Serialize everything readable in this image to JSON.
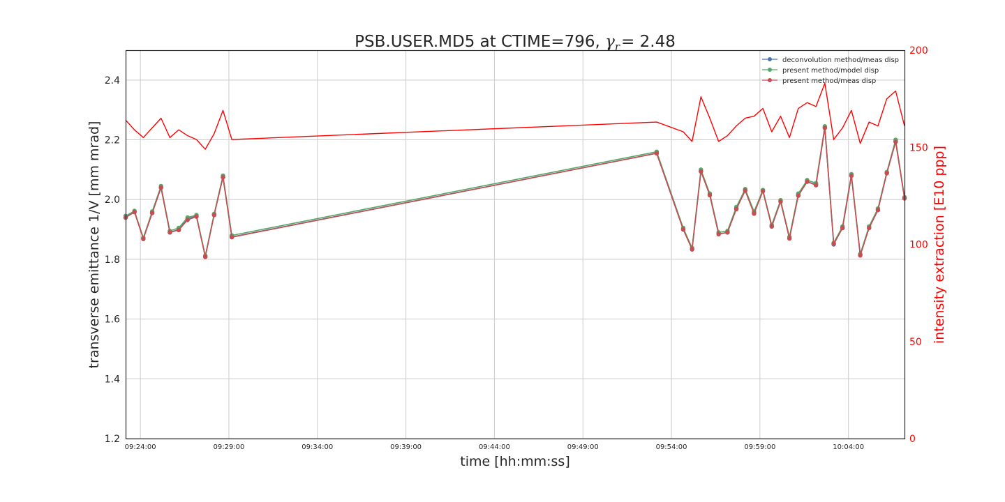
{
  "chart_data": {
    "type": "line",
    "title_text": "PSB.USER.MD5 at CTIME=796, ",
    "title_symbol": "γ",
    "title_symbol_sub": "r",
    "title_value": "=  2.48",
    "xlabel": "time [hh:mm:ss]",
    "ylabel": "transverse emittance 1/V [mm mrad]",
    "y2label": "intensity extraction [E10 ppp]",
    "xlim": [
      "09:23:10",
      "10:07:10"
    ],
    "xticks": [
      "09:24:00",
      "09:29:00",
      "09:34:00",
      "09:39:00",
      "09:44:00",
      "09:49:00",
      "09:54:00",
      "09:59:00",
      "10:04:00"
    ],
    "ylim": [
      1.2,
      2.5
    ],
    "yticks": [
      "1.2",
      "1.4",
      "1.6",
      "1.8",
      "2.0",
      "2.2",
      "2.4"
    ],
    "y2lim": [
      0,
      200
    ],
    "y2ticks": [
      "0",
      "50",
      "100",
      "150",
      "200"
    ],
    "grid": true,
    "legend_position": "top-right",
    "colors": {
      "deconvolution": "#4c72b0",
      "present_model": "#55a868",
      "present_meas": "#c44e52",
      "intensity": "#ff0000"
    },
    "x": [
      "09:23:10",
      "09:23:40",
      "09:24:10",
      "09:24:40",
      "09:25:10",
      "09:25:40",
      "09:26:10",
      "09:26:40",
      "09:27:10",
      "09:27:40",
      "09:28:10",
      "09:28:40",
      "09:29:10",
      "09:53:10",
      "09:54:40",
      "09:55:10",
      "09:55:40",
      "09:56:10",
      "09:56:40",
      "09:57:10",
      "09:57:40",
      "09:58:10",
      "09:58:40",
      "09:59:10",
      "09:59:40",
      "10:00:10",
      "10:00:40",
      "10:01:10",
      "10:01:40",
      "10:02:10",
      "10:02:40",
      "10:03:10",
      "10:03:40",
      "10:04:10",
      "10:04:40",
      "10:05:10",
      "10:05:40",
      "10:06:10",
      "10:06:40",
      "10:07:10"
    ],
    "series": [
      {
        "name": "deconvolution method/meas disp",
        "axis": "left",
        "values": [
          1.94,
          1.96,
          1.87,
          1.955,
          2.04,
          1.89,
          1.9,
          1.935,
          1.945,
          1.81,
          1.95,
          2.075,
          1.875,
          2.155,
          1.9,
          1.835,
          2.095,
          2.015,
          1.885,
          1.89,
          1.97,
          2.03,
          1.955,
          2.03,
          1.91,
          1.995,
          1.87,
          2.015,
          2.06,
          2.05,
          2.24,
          1.85,
          1.905,
          2.08,
          1.815,
          1.905,
          1.965,
          2.09,
          2.195,
          2.005
        ]
      },
      {
        "name": "present method/model disp",
        "axis": "left",
        "values": [
          1.945,
          1.962,
          1.872,
          1.96,
          2.045,
          1.895,
          1.905,
          1.94,
          1.948,
          1.812,
          1.952,
          2.08,
          1.88,
          2.16,
          1.905,
          1.838,
          2.1,
          2.02,
          1.89,
          1.895,
          1.975,
          2.035,
          1.96,
          2.032,
          1.915,
          1.998,
          1.875,
          2.02,
          2.065,
          2.055,
          2.245,
          1.855,
          1.91,
          2.085,
          1.818,
          1.91,
          1.97,
          2.092,
          2.2,
          2.008
        ]
      },
      {
        "name": "present method/meas disp",
        "axis": "left",
        "values": [
          1.94,
          1.958,
          1.868,
          1.955,
          2.04,
          1.89,
          1.898,
          1.932,
          1.943,
          1.808,
          1.948,
          2.075,
          1.874,
          2.155,
          1.9,
          1.833,
          2.094,
          2.015,
          1.884,
          1.89,
          1.968,
          2.03,
          1.953,
          2.028,
          1.91,
          1.993,
          1.87,
          2.013,
          2.06,
          2.048,
          2.24,
          1.852,
          1.905,
          2.08,
          1.813,
          1.905,
          1.965,
          2.088,
          2.193,
          2.004
        ]
      },
      {
        "name": "",
        "axis": "right",
        "x": [
          "09:23:10",
          "09:23:40",
          "09:24:10",
          "09:24:40",
          "09:25:10",
          "09:25:40",
          "09:26:10",
          "09:26:40",
          "09:27:10",
          "09:27:40",
          "09:28:10",
          "09:28:40",
          "09:29:10",
          "09:53:10",
          "09:54:40",
          "09:55:10",
          "09:55:40",
          "09:56:10",
          "09:56:40",
          "09:57:10",
          "09:57:40",
          "09:58:10",
          "09:58:40",
          "09:59:10",
          "09:59:40",
          "10:00:10",
          "10:00:40",
          "10:01:10",
          "10:01:40",
          "10:02:10",
          "10:02:40",
          "10:03:10",
          "10:03:40",
          "10:04:10",
          "10:04:40",
          "10:05:10",
          "10:05:40",
          "10:06:10",
          "10:06:40",
          "10:07:10"
        ],
        "values": [
          164,
          159,
          155,
          160,
          165,
          155,
          159,
          156,
          154,
          149,
          157,
          169,
          154,
          163,
          158,
          153,
          176,
          165,
          153,
          156,
          161,
          165,
          166,
          170,
          158,
          166,
          155,
          170,
          173,
          171,
          183,
          154,
          160,
          169,
          152,
          163,
          161,
          175,
          179,
          161
        ]
      }
    ]
  }
}
